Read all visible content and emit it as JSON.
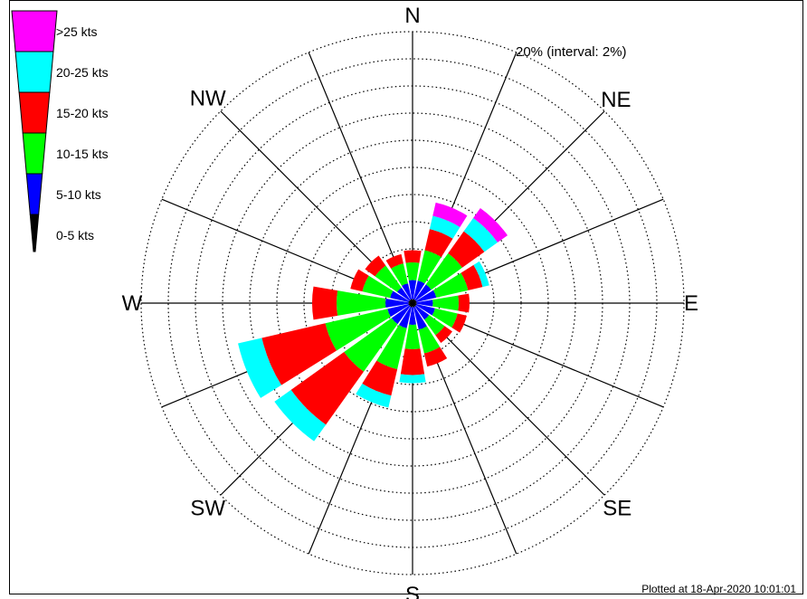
{
  "chart_data": {
    "type": "windrose",
    "title": "",
    "ring_label": "20% (interval: 2%)",
    "rmax_percent": 20,
    "interval_percent": 2,
    "direction_labels": [
      "N",
      "NE",
      "E",
      "SE",
      "S",
      "SW",
      "W",
      "NW"
    ],
    "speed_bins": [
      {
        "name": "0-5 kts",
        "color": "#000000"
      },
      {
        "name": "5-10 kts",
        "color": "#0000ff"
      },
      {
        "name": "10-15 kts",
        "color": "#00ff00"
      },
      {
        "name": "15-20 kts",
        "color": "#ff0000"
      },
      {
        "name": "20-25 kts",
        "color": "#00ffff"
      },
      {
        "name": ">25 kts",
        "color": "#ff00ff"
      }
    ],
    "sectors": [
      {
        "dir": "N",
        "cumulative_percent": [
          0.3,
          1.7,
          3.0,
          3.9,
          3.9,
          3.9
        ]
      },
      {
        "dir": "NNE",
        "cumulative_percent": [
          0.3,
          1.7,
          4.0,
          5.6,
          6.6,
          7.6
        ]
      },
      {
        "dir": "NE",
        "cumulative_percent": [
          0.3,
          1.7,
          4.5,
          6.5,
          7.7,
          8.6
        ]
      },
      {
        "dir": "ENE",
        "cumulative_percent": [
          0.3,
          1.8,
          4.2,
          5.3,
          5.8,
          5.8
        ]
      },
      {
        "dir": "E",
        "cumulative_percent": [
          0.3,
          1.5,
          3.4,
          4.2,
          4.2,
          4.2
        ]
      },
      {
        "dir": "ESE",
        "cumulative_percent": [
          0.3,
          1.7,
          3.4,
          4.1,
          4.1,
          4.1
        ]
      },
      {
        "dir": "SE",
        "cumulative_percent": [
          0.3,
          1.5,
          2.9,
          3.6,
          3.6,
          3.6
        ]
      },
      {
        "dir": "SSE",
        "cumulative_percent": [
          0.3,
          2.0,
          3.8,
          4.8,
          4.8,
          4.8
        ]
      },
      {
        "dir": "S",
        "cumulative_percent": [
          0.3,
          1.6,
          3.4,
          5.3,
          5.9,
          5.9
        ]
      },
      {
        "dir": "SSW",
        "cumulative_percent": [
          0.3,
          1.9,
          5.0,
          7.0,
          7.9,
          7.9
        ]
      },
      {
        "dir": "SW",
        "cumulative_percent": [
          0.3,
          1.9,
          6.2,
          11.0,
          12.5,
          12.5
        ]
      },
      {
        "dir": "WSW",
        "cumulative_percent": [
          0.3,
          1.9,
          6.6,
          11.4,
          13.2,
          13.2
        ]
      },
      {
        "dir": "W",
        "cumulative_percent": [
          0.3,
          2.0,
          5.6,
          7.4,
          7.4,
          7.4
        ]
      },
      {
        "dir": "WNW",
        "cumulative_percent": [
          0.3,
          1.7,
          3.8,
          4.7,
          4.7,
          4.7
        ]
      },
      {
        "dir": "NW",
        "cumulative_percent": [
          0.3,
          1.4,
          3.4,
          4.3,
          4.3,
          4.3
        ]
      },
      {
        "dir": "NNW",
        "cumulative_percent": [
          0.3,
          1.5,
          3.0,
          3.7,
          3.7,
          3.7
        ]
      }
    ],
    "grid": true,
    "legend_position": "top-left"
  },
  "footer": {
    "plotted_at": "Plotted at 18-Apr-2020 10:01:01"
  }
}
